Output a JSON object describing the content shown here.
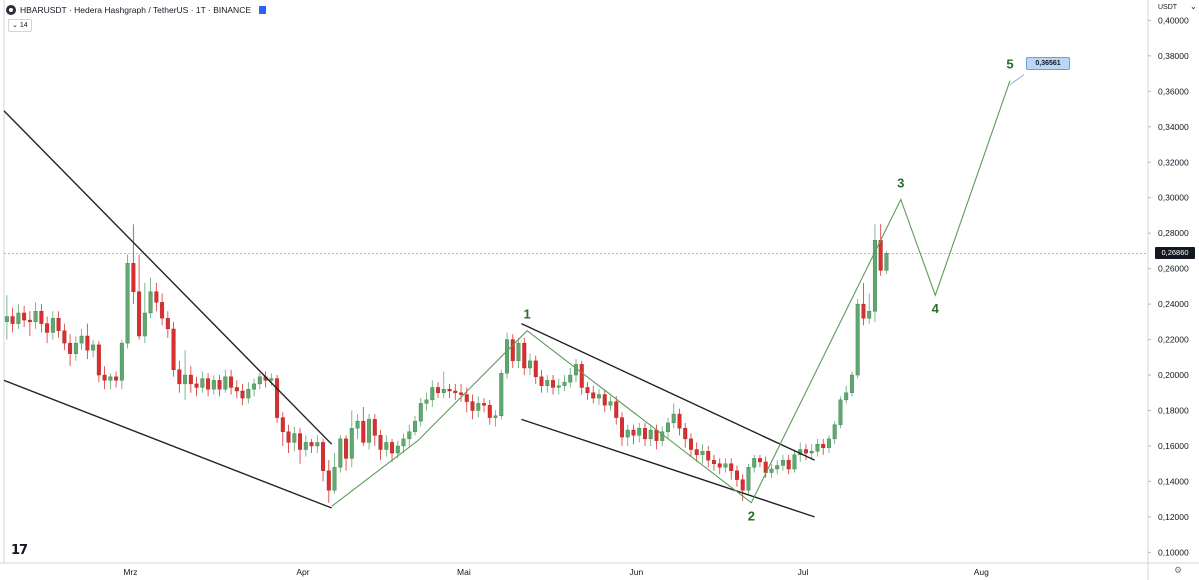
{
  "header": {
    "title": "HBARUSDT · Hedera Hashgraph / TetherUS · 1T · BINANCE",
    "indicator_count": "14",
    "currency": "USDT",
    "caret": "⌄"
  },
  "colors": {
    "up": "#5fa86f",
    "down": "#d8302f",
    "wave": "#5b9c55",
    "trend": "#222222",
    "label": "#2d6a2a",
    "grid_price": "#9aa0ab"
  },
  "wave_labels": [
    "1",
    "2",
    "3",
    "4",
    "5"
  ],
  "target_label": "0,36561",
  "chart_data": {
    "type": "candlestick",
    "symbol": "HBARUSDT",
    "interval": "1T",
    "exchange": "BINANCE",
    "current_price": 0.2686,
    "current_price_label": "0,26860",
    "target": 0.36561,
    "ylim": [
      0.094,
      0.4115
    ],
    "yticks": [
      "0,40000",
      "0,38000",
      "0,36000",
      "0,34000",
      "0,32000",
      "0,30000",
      "0,28000",
      "0,26000",
      "0,24000",
      "0,22000",
      "0,20000",
      "0,18000",
      "0,16000",
      "0,14000",
      "0,12000",
      "0,10000"
    ],
    "ytick_values": [
      0.4,
      0.38,
      0.36,
      0.34,
      0.32,
      0.3,
      0.28,
      0.26,
      0.24,
      0.22,
      0.2,
      0.18,
      0.16,
      0.14,
      0.12,
      0.1
    ],
    "xlim": [
      0,
      199
    ],
    "xticks": [
      {
        "label": "Mrz",
        "x": 22
      },
      {
        "label": "Apr",
        "x": 52
      },
      {
        "label": "Mai",
        "x": 80
      },
      {
        "label": "Jun",
        "x": 110
      },
      {
        "label": "Jul",
        "x": 139
      },
      {
        "label": "Aug",
        "x": 170
      }
    ],
    "candles": [
      [
        0.23,
        0.233,
        0.245,
        0.22
      ],
      [
        0.233,
        0.229,
        0.238,
        0.224
      ],
      [
        0.229,
        0.235,
        0.24,
        0.226
      ],
      [
        0.235,
        0.231,
        0.239,
        0.227
      ],
      [
        0.231,
        0.23,
        0.236,
        0.222
      ],
      [
        0.23,
        0.236,
        0.241,
        0.226
      ],
      [
        0.236,
        0.229,
        0.24,
        0.224
      ],
      [
        0.229,
        0.224,
        0.233,
        0.218
      ],
      [
        0.224,
        0.232,
        0.236,
        0.22
      ],
      [
        0.232,
        0.225,
        0.236,
        0.221
      ],
      [
        0.225,
        0.218,
        0.229,
        0.214
      ],
      [
        0.218,
        0.212,
        0.223,
        0.205
      ],
      [
        0.212,
        0.218,
        0.222,
        0.208
      ],
      [
        0.218,
        0.222,
        0.226,
        0.214
      ],
      [
        0.222,
        0.214,
        0.229,
        0.209
      ],
      [
        0.214,
        0.217,
        0.22,
        0.21
      ],
      [
        0.217,
        0.2,
        0.219,
        0.196
      ],
      [
        0.2,
        0.197,
        0.205,
        0.192
      ],
      [
        0.197,
        0.199,
        0.201,
        0.192
      ],
      [
        0.199,
        0.197,
        0.202,
        0.193
      ],
      [
        0.197,
        0.218,
        0.22,
        0.192
      ],
      [
        0.218,
        0.263,
        0.268,
        0.215
      ],
      [
        0.263,
        0.247,
        0.285,
        0.24
      ],
      [
        0.247,
        0.222,
        0.268,
        0.22
      ],
      [
        0.222,
        0.235,
        0.252,
        0.218
      ],
      [
        0.235,
        0.247,
        0.255,
        0.232
      ],
      [
        0.247,
        0.241,
        0.252,
        0.236
      ],
      [
        0.241,
        0.232,
        0.246,
        0.228
      ],
      [
        0.232,
        0.226,
        0.236,
        0.221
      ],
      [
        0.226,
        0.203,
        0.23,
        0.199
      ],
      [
        0.203,
        0.195,
        0.208,
        0.19
      ],
      [
        0.195,
        0.2,
        0.214,
        0.186
      ],
      [
        0.2,
        0.195,
        0.205,
        0.19
      ],
      [
        0.195,
        0.193,
        0.199,
        0.188
      ],
      [
        0.193,
        0.198,
        0.202,
        0.19
      ],
      [
        0.198,
        0.192,
        0.201,
        0.188
      ],
      [
        0.192,
        0.197,
        0.2,
        0.189
      ],
      [
        0.197,
        0.192,
        0.2,
        0.188
      ],
      [
        0.192,
        0.199,
        0.203,
        0.19
      ],
      [
        0.199,
        0.193,
        0.203,
        0.189
      ],
      [
        0.193,
        0.191,
        0.197,
        0.187
      ],
      [
        0.191,
        0.187,
        0.195,
        0.183
      ],
      [
        0.187,
        0.192,
        0.196,
        0.184
      ],
      [
        0.192,
        0.195,
        0.198,
        0.188
      ],
      [
        0.195,
        0.199,
        0.201,
        0.192
      ],
      [
        0.199,
        0.197,
        0.202,
        0.193
      ],
      [
        0.197,
        0.198,
        0.201,
        0.194
      ],
      [
        0.198,
        0.176,
        0.2,
        0.173
      ],
      [
        0.176,
        0.168,
        0.179,
        0.16
      ],
      [
        0.168,
        0.162,
        0.172,
        0.156
      ],
      [
        0.162,
        0.167,
        0.171,
        0.157
      ],
      [
        0.167,
        0.158,
        0.17,
        0.15
      ],
      [
        0.158,
        0.162,
        0.166,
        0.154
      ],
      [
        0.162,
        0.16,
        0.164,
        0.156
      ],
      [
        0.16,
        0.162,
        0.166,
        0.156
      ],
      [
        0.162,
        0.146,
        0.164,
        0.14
      ],
      [
        0.146,
        0.135,
        0.152,
        0.128
      ],
      [
        0.135,
        0.148,
        0.156,
        0.133
      ],
      [
        0.148,
        0.164,
        0.166,
        0.145
      ],
      [
        0.164,
        0.153,
        0.166,
        0.146
      ],
      [
        0.153,
        0.17,
        0.18,
        0.148
      ],
      [
        0.17,
        0.174,
        0.178,
        0.164
      ],
      [
        0.174,
        0.162,
        0.182,
        0.16
      ],
      [
        0.162,
        0.175,
        0.178,
        0.158
      ],
      [
        0.175,
        0.166,
        0.178,
        0.16
      ],
      [
        0.166,
        0.158,
        0.169,
        0.152
      ],
      [
        0.158,
        0.162,
        0.166,
        0.154
      ],
      [
        0.162,
        0.156,
        0.164,
        0.151
      ],
      [
        0.156,
        0.16,
        0.163,
        0.153
      ],
      [
        0.16,
        0.164,
        0.167,
        0.156
      ],
      [
        0.164,
        0.168,
        0.172,
        0.16
      ],
      [
        0.168,
        0.174,
        0.177,
        0.166
      ],
      [
        0.174,
        0.184,
        0.187,
        0.171
      ],
      [
        0.184,
        0.186,
        0.19,
        0.18
      ],
      [
        0.186,
        0.193,
        0.197,
        0.182
      ],
      [
        0.193,
        0.19,
        0.196,
        0.187
      ],
      [
        0.19,
        0.192,
        0.202,
        0.187
      ],
      [
        0.192,
        0.191,
        0.195,
        0.187
      ],
      [
        0.191,
        0.19,
        0.195,
        0.186
      ],
      [
        0.19,
        0.189,
        0.195,
        0.185
      ],
      [
        0.189,
        0.185,
        0.193,
        0.179
      ],
      [
        0.185,
        0.18,
        0.189,
        0.175
      ],
      [
        0.18,
        0.184,
        0.188,
        0.176
      ],
      [
        0.184,
        0.183,
        0.187,
        0.179
      ],
      [
        0.183,
        0.176,
        0.186,
        0.172
      ],
      [
        0.176,
        0.177,
        0.18,
        0.171
      ],
      [
        0.177,
        0.201,
        0.203,
        0.175
      ],
      [
        0.201,
        0.22,
        0.224,
        0.198
      ],
      [
        0.22,
        0.208,
        0.223,
        0.204
      ],
      [
        0.208,
        0.218,
        0.221,
        0.204
      ],
      [
        0.218,
        0.204,
        0.221,
        0.2
      ],
      [
        0.204,
        0.208,
        0.212,
        0.2
      ],
      [
        0.208,
        0.199,
        0.211,
        0.195
      ],
      [
        0.199,
        0.194,
        0.203,
        0.19
      ],
      [
        0.194,
        0.197,
        0.2,
        0.19
      ],
      [
        0.197,
        0.193,
        0.2,
        0.189
      ],
      [
        0.193,
        0.194,
        0.198,
        0.189
      ],
      [
        0.194,
        0.196,
        0.2,
        0.191
      ],
      [
        0.196,
        0.2,
        0.204,
        0.193
      ],
      [
        0.2,
        0.206,
        0.209,
        0.196
      ],
      [
        0.206,
        0.193,
        0.208,
        0.189
      ],
      [
        0.193,
        0.19,
        0.196,
        0.186
      ],
      [
        0.19,
        0.187,
        0.194,
        0.184
      ],
      [
        0.187,
        0.189,
        0.192,
        0.183
      ],
      [
        0.189,
        0.183,
        0.192,
        0.179
      ],
      [
        0.183,
        0.185,
        0.188,
        0.18
      ],
      [
        0.185,
        0.176,
        0.188,
        0.172
      ],
      [
        0.176,
        0.165,
        0.179,
        0.16
      ],
      [
        0.165,
        0.169,
        0.172,
        0.16
      ],
      [
        0.169,
        0.166,
        0.172,
        0.161
      ],
      [
        0.166,
        0.17,
        0.173,
        0.162
      ],
      [
        0.17,
        0.164,
        0.173,
        0.16
      ],
      [
        0.164,
        0.169,
        0.172,
        0.16
      ],
      [
        0.169,
        0.163,
        0.172,
        0.158
      ],
      [
        0.163,
        0.168,
        0.171,
        0.16
      ],
      [
        0.168,
        0.173,
        0.176,
        0.164
      ],
      [
        0.173,
        0.178,
        0.184,
        0.17
      ],
      [
        0.178,
        0.17,
        0.181,
        0.166
      ],
      [
        0.17,
        0.164,
        0.173,
        0.159
      ],
      [
        0.164,
        0.158,
        0.167,
        0.154
      ],
      [
        0.158,
        0.155,
        0.162,
        0.151
      ],
      [
        0.155,
        0.157,
        0.161,
        0.15
      ],
      [
        0.157,
        0.152,
        0.16,
        0.148
      ],
      [
        0.152,
        0.15,
        0.155,
        0.146
      ],
      [
        0.15,
        0.148,
        0.153,
        0.144
      ],
      [
        0.148,
        0.15,
        0.153,
        0.145
      ],
      [
        0.15,
        0.146,
        0.153,
        0.141
      ],
      [
        0.146,
        0.141,
        0.149,
        0.137
      ],
      [
        0.141,
        0.135,
        0.144,
        0.129
      ],
      [
        0.135,
        0.148,
        0.15,
        0.132
      ],
      [
        0.148,
        0.153,
        0.155,
        0.145
      ],
      [
        0.153,
        0.151,
        0.155,
        0.148
      ],
      [
        0.151,
        0.145,
        0.154,
        0.142
      ],
      [
        0.145,
        0.147,
        0.15,
        0.142
      ],
      [
        0.147,
        0.149,
        0.152,
        0.144
      ],
      [
        0.149,
        0.152,
        0.155,
        0.146
      ],
      [
        0.152,
        0.147,
        0.155,
        0.144
      ],
      [
        0.147,
        0.155,
        0.158,
        0.145
      ],
      [
        0.155,
        0.158,
        0.162,
        0.151
      ],
      [
        0.158,
        0.156,
        0.161,
        0.152
      ],
      [
        0.156,
        0.157,
        0.161,
        0.153
      ],
      [
        0.157,
        0.161,
        0.164,
        0.154
      ],
      [
        0.161,
        0.159,
        0.164,
        0.155
      ],
      [
        0.159,
        0.164,
        0.166,
        0.156
      ],
      [
        0.164,
        0.172,
        0.174,
        0.161
      ],
      [
        0.172,
        0.186,
        0.188,
        0.17
      ],
      [
        0.186,
        0.19,
        0.194,
        0.184
      ],
      [
        0.19,
        0.2,
        0.202,
        0.188
      ],
      [
        0.2,
        0.24,
        0.243,
        0.198
      ],
      [
        0.24,
        0.232,
        0.252,
        0.228
      ],
      [
        0.232,
        0.236,
        0.246,
        0.229
      ],
      [
        0.236,
        0.276,
        0.285,
        0.23
      ],
      [
        0.276,
        0.259,
        0.285,
        0.256
      ],
      [
        0.259,
        0.2686,
        0.27,
        0.257
      ]
    ],
    "trendlines": [
      {
        "role": "upper-left",
        "points": [
          [
            0,
            0.349
          ],
          [
            57,
            0.161
          ]
        ]
      },
      {
        "role": "lower-left",
        "points": [
          [
            0,
            0.197
          ],
          [
            57,
            0.125
          ]
        ]
      },
      {
        "role": "upper-mid",
        "points": [
          [
            90,
            0.229
          ],
          [
            141,
            0.152
          ]
        ]
      },
      {
        "role": "lower-mid",
        "points": [
          [
            90,
            0.175
          ],
          [
            141,
            0.12
          ]
        ]
      }
    ],
    "wave_path": [
      [
        57,
        0.126
      ],
      [
        72,
        0.163
      ],
      [
        91,
        0.225
      ],
      [
        130,
        0.128
      ],
      [
        156,
        0.299
      ],
      [
        162,
        0.245
      ],
      [
        175,
        0.366
      ]
    ],
    "wave_points": [
      {
        "label": "1",
        "x": 91,
        "y": 0.225
      },
      {
        "label": "2",
        "x": 130,
        "y": 0.128
      },
      {
        "label": "3",
        "x": 156,
        "y": 0.299
      },
      {
        "label": "4",
        "x": 162,
        "y": 0.245
      },
      {
        "label": "5",
        "x": 175,
        "y": 0.366
      }
    ]
  }
}
